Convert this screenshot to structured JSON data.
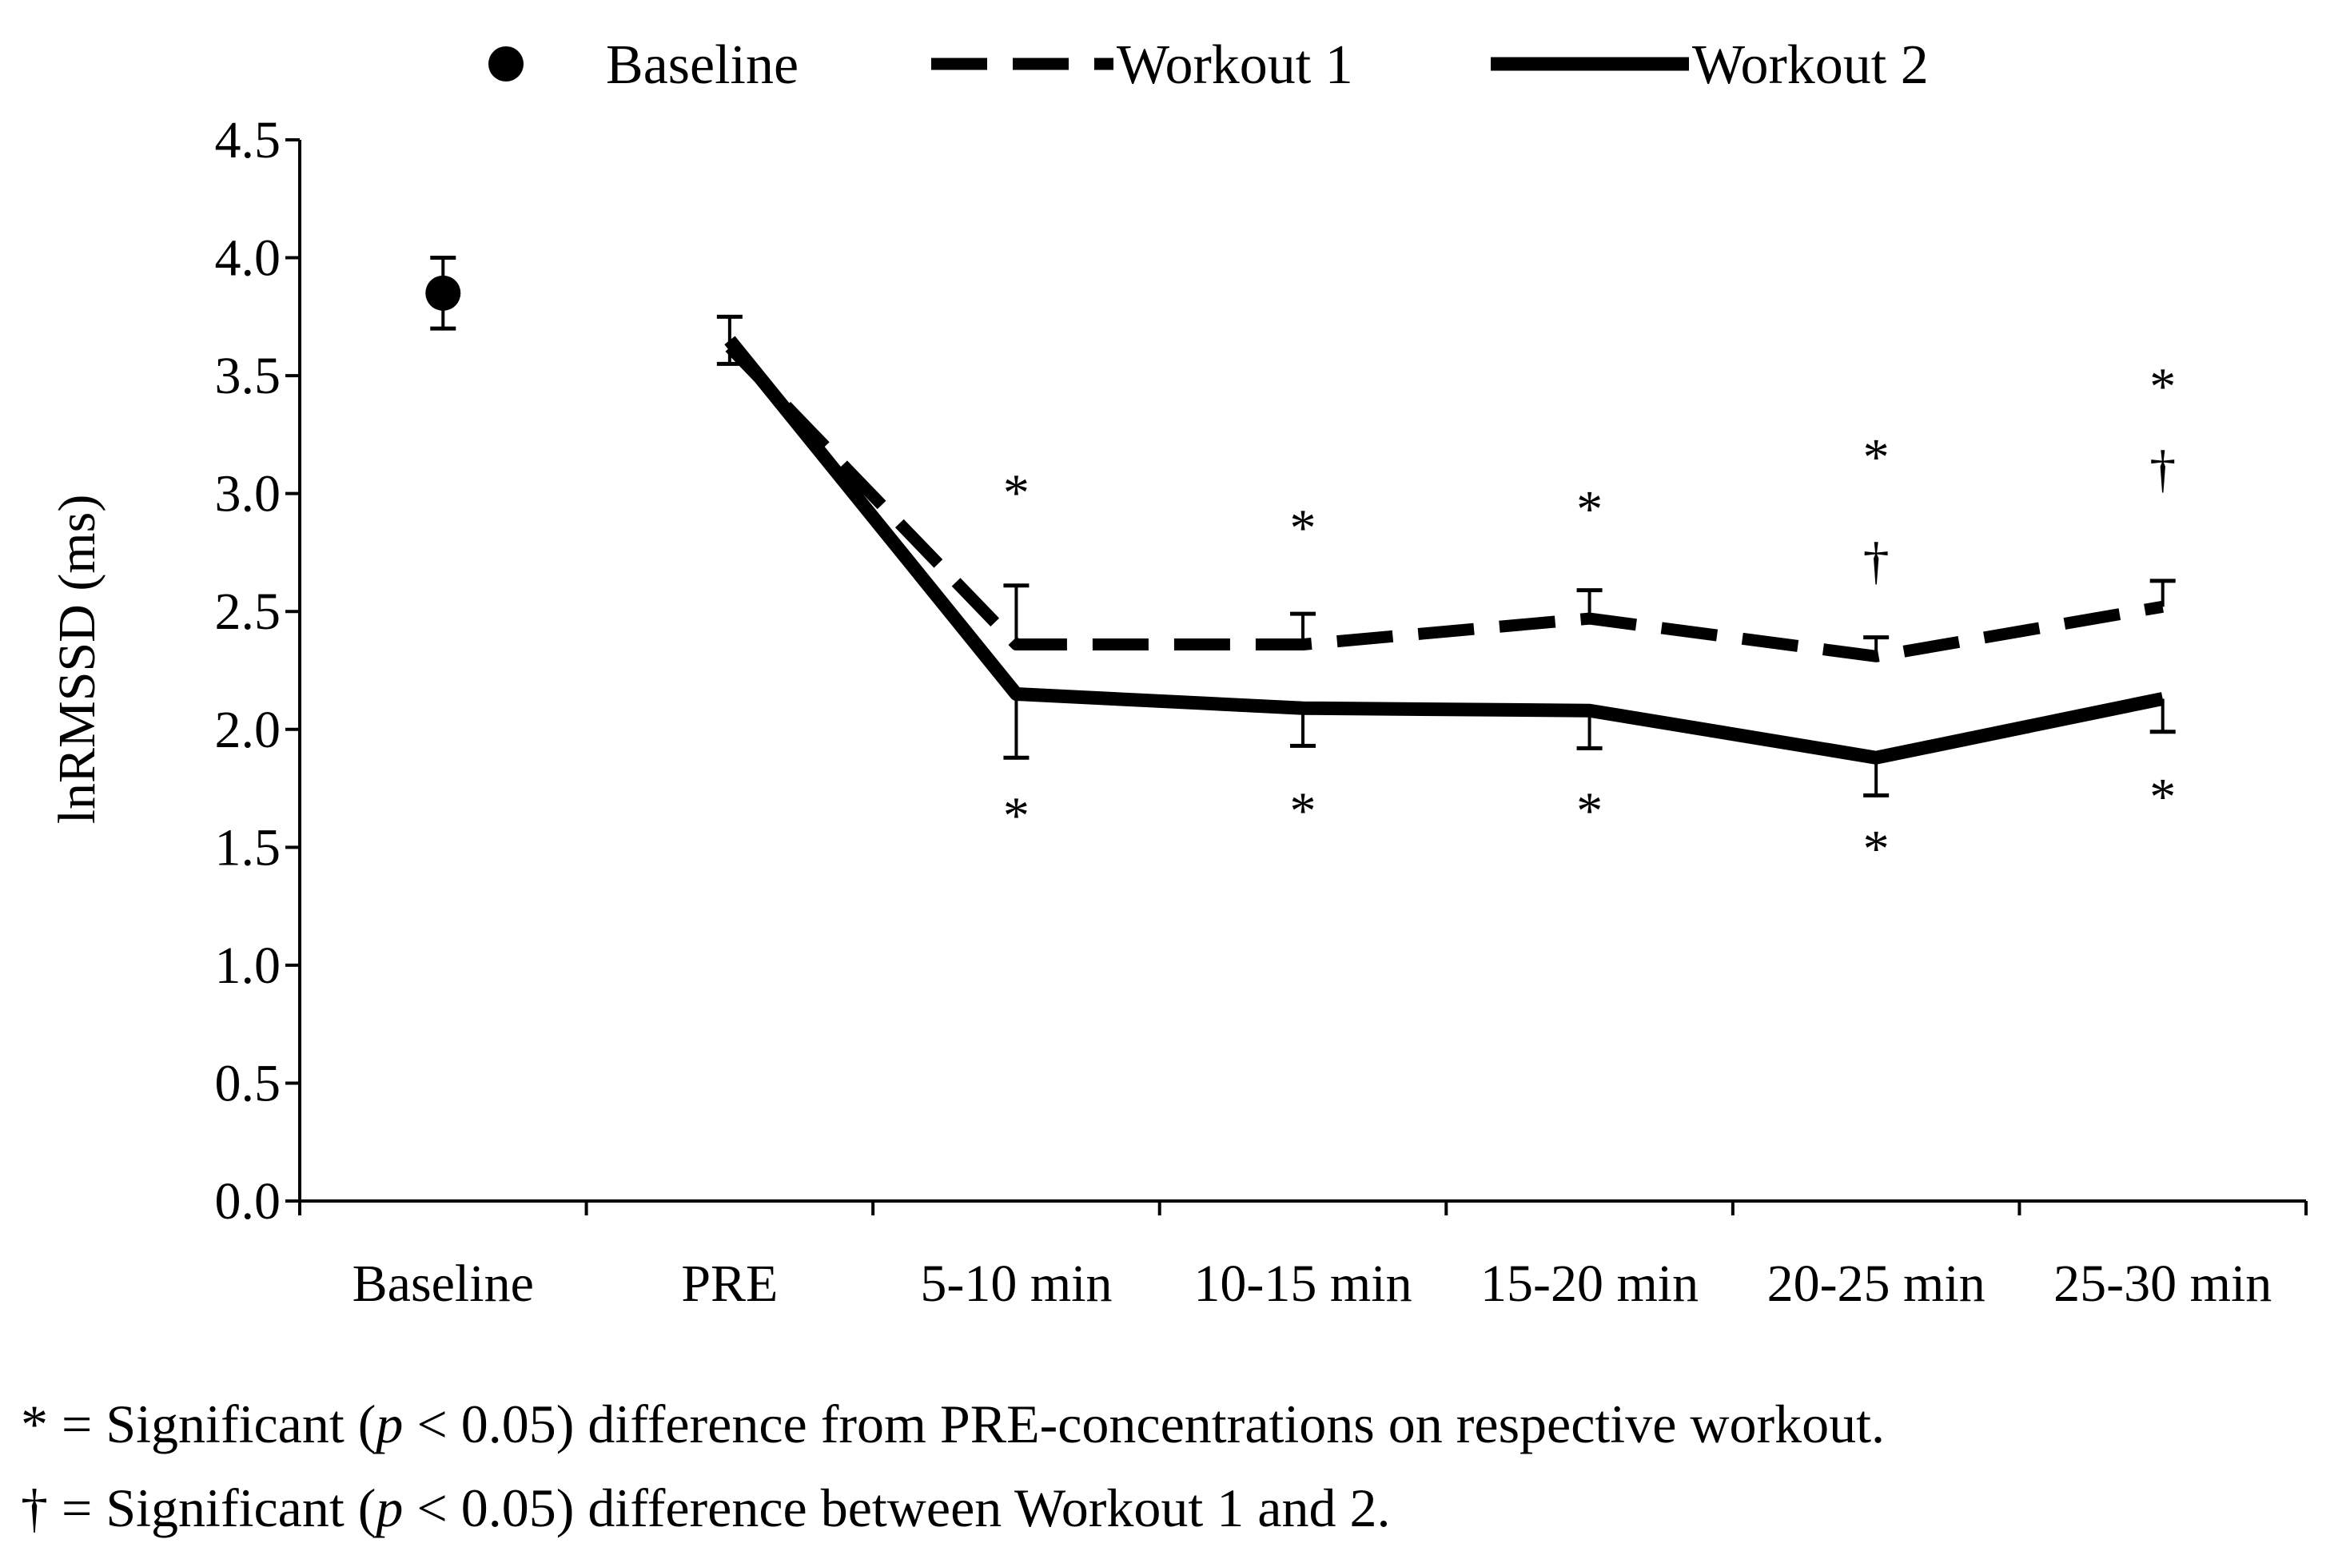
{
  "chart_data": {
    "type": "line",
    "title": "",
    "xlabel": "",
    "ylabel": "lnRMSSD (ms)",
    "ylim": [
      0,
      4.5
    ],
    "yticks": [
      "0.0",
      "0.5",
      "1.0",
      "1.5",
      "2.0",
      "2.5",
      "3.0",
      "3.5",
      "4.0",
      "4.5"
    ],
    "categories": [
      "Baseline",
      "PRE",
      "5-10 min",
      "10-15 min",
      "15-20 min",
      "20-25 min",
      "25-30 min"
    ],
    "legend": {
      "position": "top",
      "entries": [
        "Baseline",
        "Workout 1",
        "Workout 2"
      ]
    },
    "grid": false,
    "series": [
      {
        "name": "Baseline",
        "style": "marker",
        "values": [
          3.85,
          null,
          null,
          null,
          null,
          null,
          null
        ],
        "error": [
          0.15,
          null,
          null,
          null,
          null,
          null,
          null
        ]
      },
      {
        "name": "Workout 1",
        "style": "dashed",
        "values": [
          null,
          3.62,
          2.36,
          2.36,
          2.47,
          2.31,
          2.52
        ],
        "error": [
          null,
          0.13,
          0.25,
          0.13,
          0.12,
          0.08,
          0.11
        ],
        "error_direction": "up"
      },
      {
        "name": "Workout 2",
        "style": "solid",
        "values": [
          null,
          3.65,
          2.15,
          2.09,
          2.08,
          1.88,
          2.13
        ],
        "error": [
          null,
          0.1,
          0.27,
          0.16,
          0.16,
          0.16,
          0.14
        ],
        "error_direction": "down"
      }
    ],
    "annotations": [
      {
        "category": "5-10 min",
        "text": "*",
        "value": 2.93
      },
      {
        "category": "10-15 min",
        "text": "*",
        "value": 2.78
      },
      {
        "category": "15-20 min",
        "text": "*",
        "value": 2.86
      },
      {
        "category": "20-25 min",
        "text": "*",
        "value": 3.08
      },
      {
        "category": "20-25 min",
        "text": "†",
        "value": 2.64
      },
      {
        "category": "25-30 min",
        "text": "*",
        "value": 3.38
      },
      {
        "category": "25-30 min",
        "text": "†",
        "value": 3.03
      },
      {
        "category": "5-10 min",
        "text": "*",
        "value": 1.56
      },
      {
        "category": "10-15 min",
        "text": "*",
        "value": 1.58
      },
      {
        "category": "15-20 min",
        "text": "*",
        "value": 1.58
      },
      {
        "category": "20-25 min",
        "text": "*",
        "value": 1.42
      },
      {
        "category": "25-30 min",
        "text": "*",
        "value": 1.64
      }
    ]
  },
  "notes": {
    "line1": {
      "prefix": "* = Significant (",
      "p": "p",
      "suffix": " < 0.05) difference from PRE-concentrations on respective workout."
    },
    "line2": {
      "prefix": "† = Significant (",
      "p": "p",
      "suffix": " < 0.05) difference between Workout 1 and 2."
    }
  }
}
